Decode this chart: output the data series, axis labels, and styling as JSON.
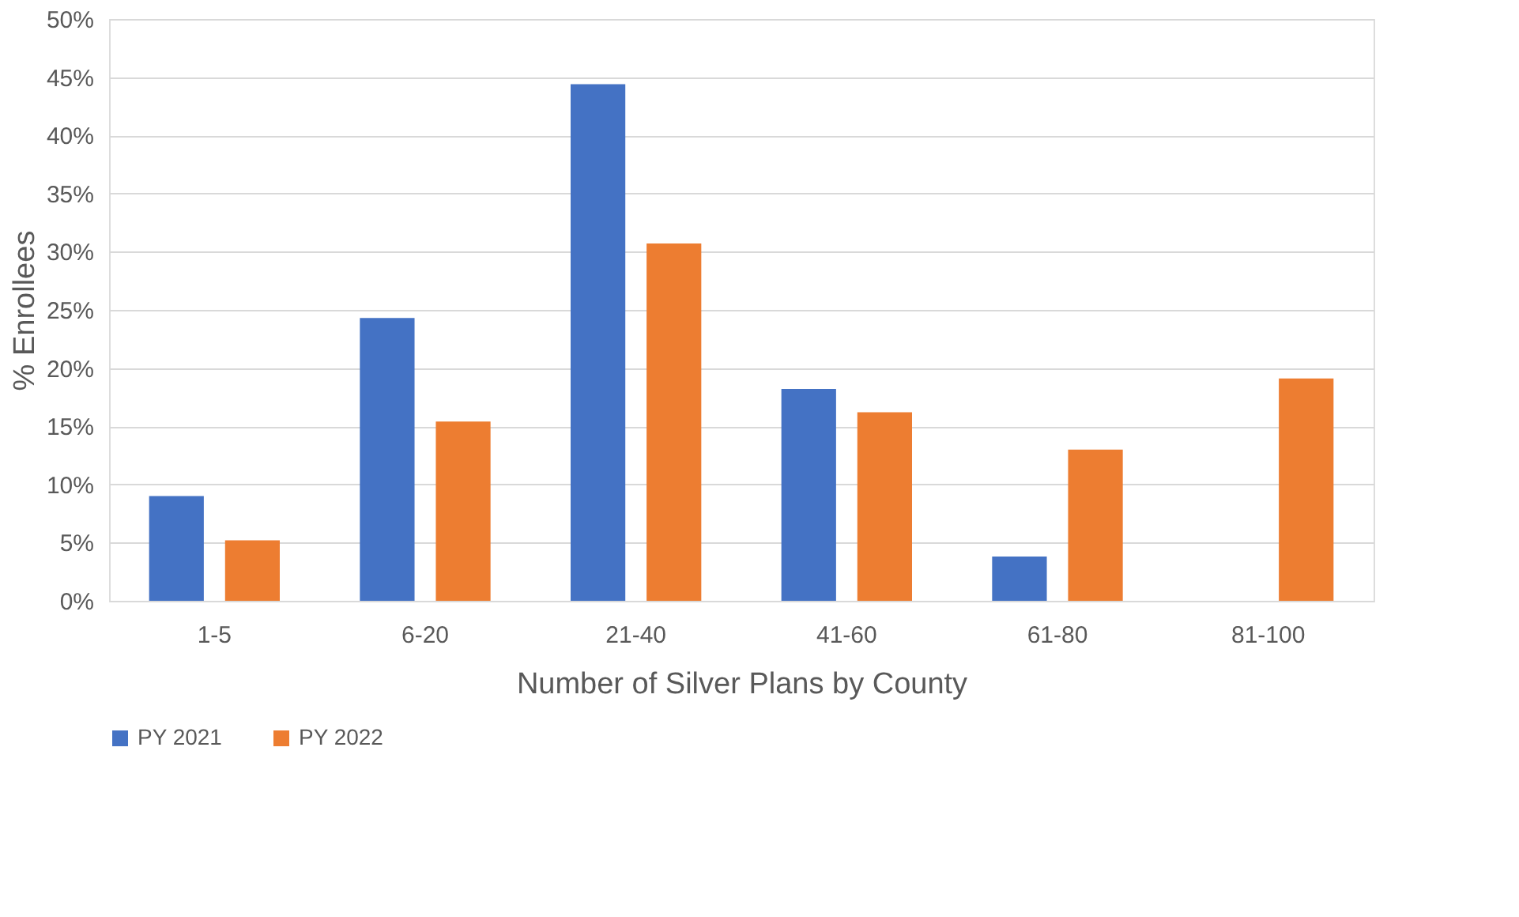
{
  "chart_data": {
    "type": "bar",
    "xlabel": "Number of Silver Plans by County",
    "ylabel": "% Enrollees",
    "categories": [
      "1-5",
      "6-20",
      "21-40",
      "41-60",
      "61-80",
      "81-100"
    ],
    "series": [
      {
        "name": "PY 2021",
        "color": "#4472c4",
        "values": [
          9.0,
          24.3,
          44.4,
          18.2,
          3.8,
          null
        ]
      },
      {
        "name": "PY 2022",
        "color": "#ed7d31",
        "values": [
          5.2,
          15.4,
          30.7,
          16.2,
          13.0,
          19.1
        ]
      }
    ],
    "ylim": [
      0,
      50
    ],
    "yticks": [
      {
        "value": 0,
        "label": "0%"
      },
      {
        "value": 5,
        "label": "5%"
      },
      {
        "value": 10,
        "label": "10%"
      },
      {
        "value": 15,
        "label": "15%"
      },
      {
        "value": 20,
        "label": "20%"
      },
      {
        "value": 25,
        "label": "25%"
      },
      {
        "value": 30,
        "label": "30%"
      },
      {
        "value": 35,
        "label": "35%"
      },
      {
        "value": 40,
        "label": "40%"
      },
      {
        "value": 45,
        "label": "45%"
      },
      {
        "value": 50,
        "label": "50%"
      }
    ],
    "grid": "y",
    "legend": "bottom"
  }
}
